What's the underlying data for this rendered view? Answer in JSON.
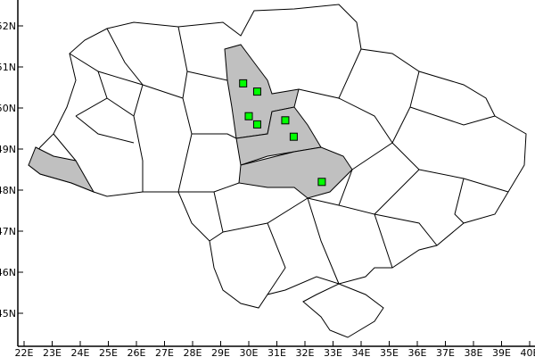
{
  "map": {
    "x_ticks": [
      "22E",
      "23E",
      "24E",
      "25E",
      "26E",
      "27E",
      "28E",
      "29E",
      "30E",
      "31E",
      "32E",
      "33E",
      "34E",
      "35E",
      "36E",
      "37E",
      "38E",
      "39E",
      "40E"
    ],
    "y_ticks": [
      "45N",
      "46N",
      "47N",
      "48N",
      "49N",
      "50N",
      "51N",
      "52N"
    ],
    "lon_range": [
      21.8,
      40.2
    ],
    "lat_range": [
      44.2,
      52.5
    ],
    "colors": {
      "land": "#ffffff",
      "highlight_region": "#c0c0c0",
      "border": "#000000",
      "marker": "#00ff00"
    },
    "highlighted_regions": 4
  },
  "chart_data": {
    "type": "scatter",
    "x": [
      29.8,
      30.3,
      30.0,
      30.3,
      31.3,
      31.6,
      32.6
    ],
    "y": [
      50.6,
      50.4,
      49.8,
      49.6,
      49.7,
      49.3,
      48.2
    ],
    "xlim": [
      21.8,
      40.2
    ],
    "ylim": [
      44.2,
      52.5
    ],
    "marker": "square",
    "grid": false
  }
}
